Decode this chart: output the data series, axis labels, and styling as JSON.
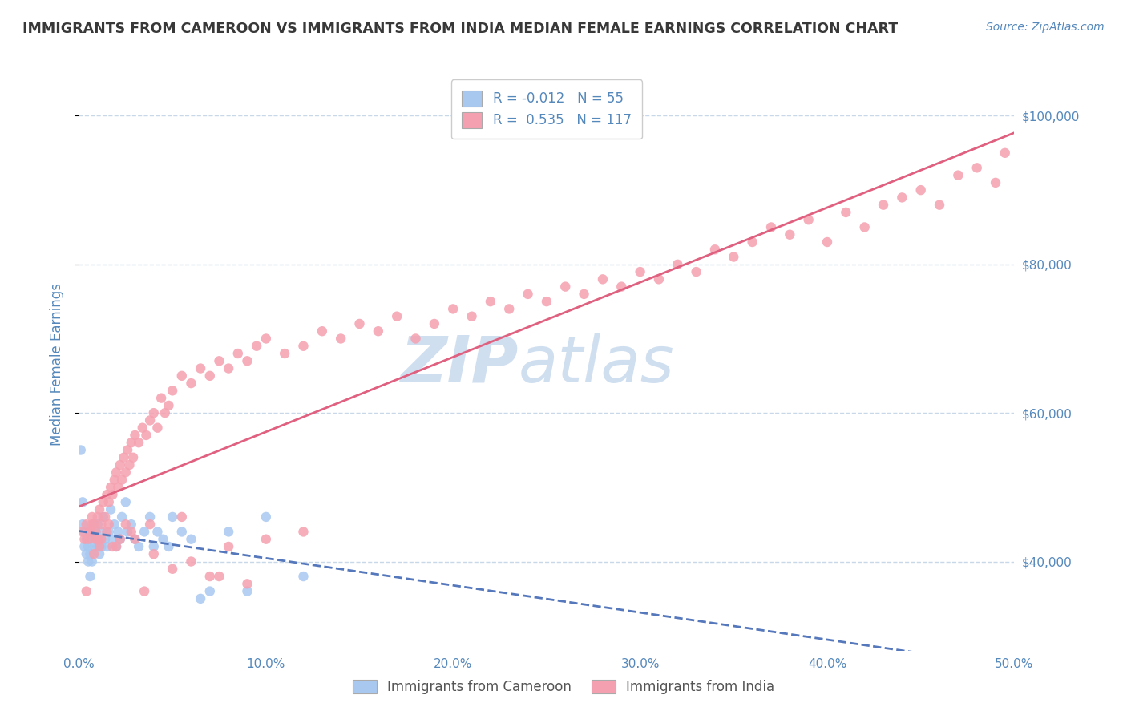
{
  "title": "IMMIGRANTS FROM CAMEROON VS IMMIGRANTS FROM INDIA MEDIAN FEMALE EARNINGS CORRELATION CHART",
  "source": "Source: ZipAtlas.com",
  "ylabel": "Median Female Earnings",
  "xlim": [
    0.0,
    0.5
  ],
  "ylim": [
    28000,
    105000
  ],
  "yticks": [
    40000,
    60000,
    80000,
    100000
  ],
  "ytick_labels": [
    "$40,000",
    "$60,000",
    "$80,000",
    "$100,000"
  ],
  "xticks": [
    0.0,
    0.1,
    0.2,
    0.3,
    0.4,
    0.5
  ],
  "cameroon_R": -0.012,
  "cameroon_N": 55,
  "india_R": 0.535,
  "india_N": 117,
  "cameroon_color": "#a8c8f0",
  "india_color": "#f5a0b0",
  "cameroon_line_color": "#5577bb",
  "india_line_color": "#e06080",
  "grid_color": "#c8d8e8",
  "axis_color": "#5588bb",
  "background_color": "#ffffff",
  "watermark_color": "#d0dff0",
  "cameroon_x": [
    0.001,
    0.002,
    0.002,
    0.003,
    0.003,
    0.004,
    0.004,
    0.005,
    0.005,
    0.006,
    0.006,
    0.006,
    0.007,
    0.007,
    0.008,
    0.008,
    0.009,
    0.009,
    0.01,
    0.01,
    0.011,
    0.011,
    0.012,
    0.012,
    0.013,
    0.014,
    0.015,
    0.016,
    0.017,
    0.018,
    0.019,
    0.02,
    0.021,
    0.022,
    0.023,
    0.025,
    0.026,
    0.028,
    0.03,
    0.032,
    0.035,
    0.038,
    0.04,
    0.042,
    0.045,
    0.048,
    0.05,
    0.055,
    0.06,
    0.065,
    0.07,
    0.08,
    0.09,
    0.1,
    0.12
  ],
  "cameroon_y": [
    55000,
    48000,
    45000,
    44000,
    42000,
    43000,
    41000,
    42000,
    40000,
    41000,
    43000,
    38000,
    44000,
    40000,
    45000,
    42000,
    43000,
    44000,
    42000,
    45000,
    41000,
    43000,
    44000,
    42000,
    46000,
    43000,
    42000,
    44000,
    47000,
    43000,
    45000,
    42000,
    44000,
    43000,
    46000,
    48000,
    44000,
    45000,
    43000,
    42000,
    44000,
    46000,
    42000,
    44000,
    43000,
    42000,
    46000,
    44000,
    43000,
    35000,
    36000,
    44000,
    36000,
    46000,
    38000
  ],
  "india_x": [
    0.002,
    0.003,
    0.004,
    0.005,
    0.006,
    0.007,
    0.008,
    0.009,
    0.01,
    0.011,
    0.012,
    0.013,
    0.014,
    0.015,
    0.016,
    0.017,
    0.018,
    0.019,
    0.02,
    0.021,
    0.022,
    0.023,
    0.024,
    0.025,
    0.026,
    0.027,
    0.028,
    0.029,
    0.03,
    0.032,
    0.034,
    0.036,
    0.038,
    0.04,
    0.042,
    0.044,
    0.046,
    0.048,
    0.05,
    0.055,
    0.06,
    0.065,
    0.07,
    0.075,
    0.08,
    0.085,
    0.09,
    0.095,
    0.1,
    0.11,
    0.12,
    0.13,
    0.14,
    0.15,
    0.16,
    0.17,
    0.18,
    0.19,
    0.2,
    0.21,
    0.22,
    0.23,
    0.24,
    0.25,
    0.26,
    0.27,
    0.28,
    0.29,
    0.3,
    0.31,
    0.32,
    0.33,
    0.34,
    0.35,
    0.36,
    0.37,
    0.38,
    0.39,
    0.4,
    0.41,
    0.42,
    0.43,
    0.44,
    0.45,
    0.46,
    0.47,
    0.48,
    0.49,
    0.495,
    0.01,
    0.015,
    0.02,
    0.025,
    0.03,
    0.04,
    0.06,
    0.08,
    0.1,
    0.12,
    0.008,
    0.012,
    0.018,
    0.035,
    0.05,
    0.07,
    0.09,
    0.004,
    0.007,
    0.006,
    0.009,
    0.011,
    0.016,
    0.022,
    0.028,
    0.038,
    0.055,
    0.075
  ],
  "india_y": [
    44000,
    43000,
    45000,
    43000,
    44000,
    46000,
    45000,
    44000,
    46000,
    47000,
    45000,
    48000,
    46000,
    49000,
    48000,
    50000,
    49000,
    51000,
    52000,
    50000,
    53000,
    51000,
    54000,
    52000,
    55000,
    53000,
    56000,
    54000,
    57000,
    56000,
    58000,
    57000,
    59000,
    60000,
    58000,
    62000,
    60000,
    61000,
    63000,
    65000,
    64000,
    66000,
    65000,
    67000,
    66000,
    68000,
    67000,
    69000,
    70000,
    68000,
    69000,
    71000,
    70000,
    72000,
    71000,
    73000,
    70000,
    72000,
    74000,
    73000,
    75000,
    74000,
    76000,
    75000,
    77000,
    76000,
    78000,
    77000,
    79000,
    78000,
    80000,
    79000,
    82000,
    81000,
    83000,
    85000,
    84000,
    86000,
    83000,
    87000,
    85000,
    88000,
    89000,
    90000,
    88000,
    92000,
    93000,
    91000,
    95000,
    43000,
    44000,
    42000,
    45000,
    43000,
    41000,
    40000,
    42000,
    43000,
    44000,
    41000,
    43000,
    42000,
    36000,
    39000,
    38000,
    37000,
    36000,
    45000,
    44000,
    43000,
    42000,
    45000,
    43000,
    44000,
    45000,
    46000,
    38000
  ]
}
